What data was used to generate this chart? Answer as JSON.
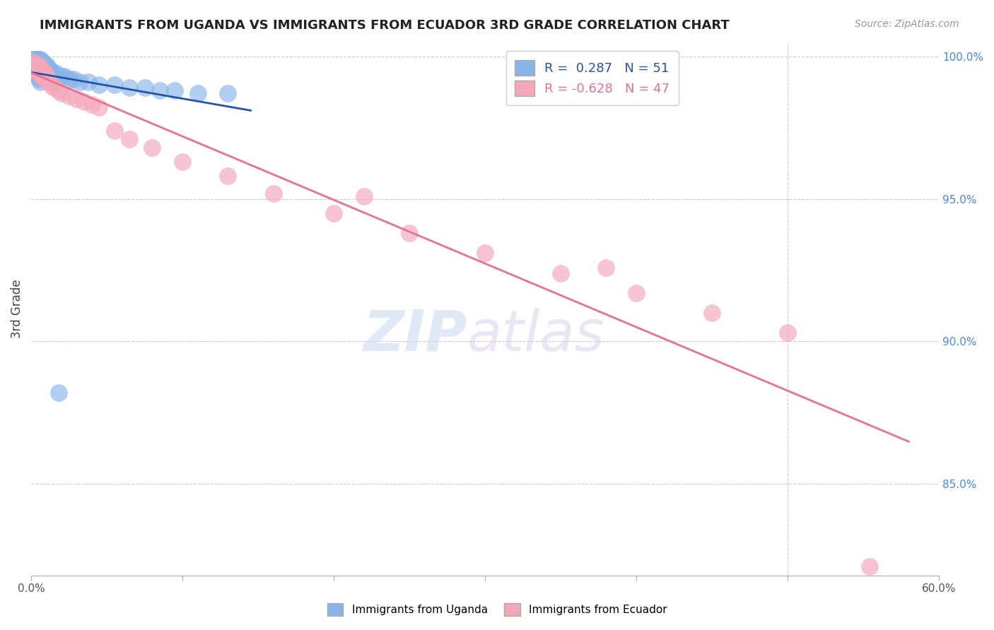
{
  "title": "IMMIGRANTS FROM UGANDA VS IMMIGRANTS FROM ECUADOR 3RD GRADE CORRELATION CHART",
  "source": "Source: ZipAtlas.com",
  "ylabel": "3rd Grade",
  "R_uganda": 0.287,
  "N_uganda": 51,
  "R_ecuador": -0.628,
  "N_ecuador": 47,
  "color_uganda": "#89b4e8",
  "color_ecuador": "#f4a7b9",
  "line_color_uganda": "#2255aa",
  "line_color_ecuador": "#e87090",
  "xmin": 0.0,
  "xmax": 0.6,
  "ymin": 0.818,
  "ymax": 1.005,
  "uganda_x": [
    0.001,
    0.002,
    0.002,
    0.003,
    0.003,
    0.003,
    0.004,
    0.004,
    0.004,
    0.005,
    0.005,
    0.005,
    0.005,
    0.006,
    0.006,
    0.006,
    0.007,
    0.007,
    0.007,
    0.008,
    0.008,
    0.009,
    0.009,
    0.01,
    0.01,
    0.011,
    0.012,
    0.013,
    0.015,
    0.017,
    0.02,
    0.022,
    0.025,
    0.028,
    0.032,
    0.038,
    0.045,
    0.055,
    0.065,
    0.075,
    0.085,
    0.095,
    0.11,
    0.13,
    0.001,
    0.002,
    0.003,
    0.004,
    0.005,
    0.006,
    0.018
  ],
  "uganda_y": [
    0.999,
    0.999,
    0.998,
    0.999,
    0.998,
    0.997,
    0.999,
    0.998,
    0.997,
    0.999,
    0.998,
    0.997,
    0.996,
    0.999,
    0.998,
    0.997,
    0.998,
    0.997,
    0.996,
    0.998,
    0.997,
    0.997,
    0.996,
    0.997,
    0.996,
    0.996,
    0.995,
    0.995,
    0.994,
    0.994,
    0.993,
    0.993,
    0.992,
    0.992,
    0.991,
    0.991,
    0.99,
    0.99,
    0.989,
    0.989,
    0.988,
    0.988,
    0.987,
    0.987,
    0.996,
    0.995,
    0.994,
    0.993,
    0.992,
    0.991,
    0.882
  ],
  "ecuador_x": [
    0.001,
    0.002,
    0.002,
    0.003,
    0.003,
    0.003,
    0.004,
    0.004,
    0.005,
    0.005,
    0.005,
    0.006,
    0.006,
    0.007,
    0.007,
    0.008,
    0.008,
    0.009,
    0.009,
    0.01,
    0.011,
    0.012,
    0.013,
    0.015,
    0.018,
    0.02,
    0.025,
    0.03,
    0.035,
    0.04,
    0.045,
    0.055,
    0.065,
    0.08,
    0.1,
    0.13,
    0.16,
    0.2,
    0.25,
    0.3,
    0.35,
    0.4,
    0.45,
    0.5,
    0.22,
    0.38,
    0.554
  ],
  "ecuador_y": [
    0.998,
    0.997,
    0.996,
    0.997,
    0.996,
    0.995,
    0.996,
    0.995,
    0.997,
    0.996,
    0.995,
    0.996,
    0.994,
    0.995,
    0.993,
    0.995,
    0.993,
    0.994,
    0.992,
    0.993,
    0.992,
    0.991,
    0.99,
    0.989,
    0.988,
    0.987,
    0.986,
    0.985,
    0.984,
    0.983,
    0.982,
    0.974,
    0.971,
    0.968,
    0.963,
    0.958,
    0.952,
    0.945,
    0.938,
    0.931,
    0.924,
    0.917,
    0.91,
    0.903,
    0.951,
    0.926,
    0.821
  ]
}
